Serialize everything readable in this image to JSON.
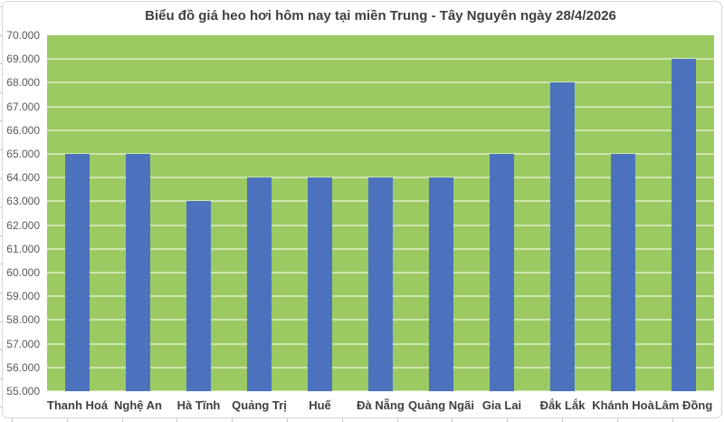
{
  "chart_data": {
    "type": "bar",
    "title": "Biểu đồ giá heo hơi hôm nay tại miền Trung - Tây Nguyên ngày 28/4/2026",
    "categories": [
      "Thanh Hoá",
      "Nghệ An",
      "Hà Tĩnh",
      "Quảng Trị",
      "Huế",
      "Đà Nẵng",
      "Quảng Ngãi",
      "Gia Lai",
      "Đắk Lắk",
      "Khánh Hoà",
      "Lâm Đồng"
    ],
    "values": [
      65000,
      65000,
      63000,
      64000,
      64000,
      64000,
      64000,
      65000,
      68000,
      65000,
      69000
    ],
    "xlabel": "",
    "ylabel": "",
    "ylim": [
      55000,
      70000
    ],
    "ytick_step": 1000,
    "ytick_labels": [
      "70.000",
      "69.000",
      "68.000",
      "67.000",
      "66.000",
      "65.000",
      "64.000",
      "63.000",
      "62.000",
      "61.000",
      "60.000",
      "59.000",
      "58.000",
      "57.000",
      "56.000",
      "55.000"
    ],
    "grid": true,
    "legend": false,
    "colors": {
      "bar": "#4c72be",
      "plot_background": "#9cca62",
      "gridline": "rgba(255,255,255,0.5)",
      "title_text": "#3f3f3f",
      "ytick_text": "#595959",
      "xtick_text": "#3f3f3f",
      "frame_border": "#d7d7d7"
    }
  }
}
